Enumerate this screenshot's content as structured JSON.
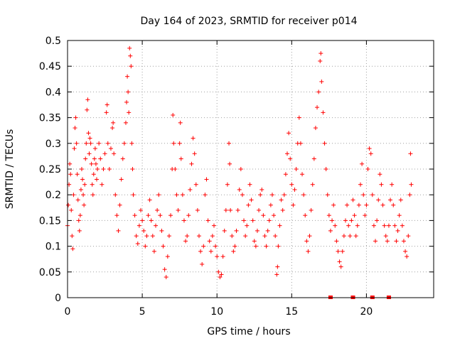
{
  "chart_data": {
    "type": "scatter",
    "title": "Day 164 of 2023, SRMTID for receiver p014",
    "xlabel": "GPS time / hours",
    "ylabel": "SRMTID / TECUs",
    "xlim": [
      0,
      24.5
    ],
    "ylim": [
      0,
      0.5
    ],
    "x_ticks": [
      0,
      5,
      10,
      15,
      20
    ],
    "x_tick_labels": [
      "0",
      "5",
      "10",
      "15",
      "20"
    ],
    "y_ticks": [
      0,
      0.05,
      0.1,
      0.15,
      0.2,
      0.25,
      0.3,
      0.35,
      0.4,
      0.45,
      0.5
    ],
    "y_tick_labels": [
      "0",
      "0.05",
      "0.1",
      "0.15",
      "0.2",
      "0.25",
      "0.3",
      "0.35",
      "0.4",
      "0.45",
      "0.5"
    ],
    "grid": true,
    "color": "#ff0000",
    "marker": "plus",
    "series": [
      {
        "name": "SRMTID",
        "points": [
          [
            0.0,
            0.14
          ],
          [
            0.05,
            0.18
          ],
          [
            0.1,
            0.22
          ],
          [
            0.15,
            0.26
          ],
          [
            0.2,
            0.24
          ],
          [
            0.25,
            0.17
          ],
          [
            0.3,
            0.12
          ],
          [
            0.35,
            0.095
          ],
          [
            0.4,
            0.2
          ],
          [
            0.45,
            0.29
          ],
          [
            0.5,
            0.33
          ],
          [
            0.55,
            0.35
          ],
          [
            0.6,
            0.3
          ],
          [
            0.65,
            0.24
          ],
          [
            0.7,
            0.19
          ],
          [
            0.75,
            0.15
          ],
          [
            0.8,
            0.13
          ],
          [
            0.85,
            0.16
          ],
          [
            0.9,
            0.21
          ],
          [
            0.95,
            0.25
          ],
          [
            1.0,
            0.23
          ],
          [
            1.05,
            0.2
          ],
          [
            1.1,
            0.18
          ],
          [
            1.15,
            0.22
          ],
          [
            1.2,
            0.27
          ],
          [
            1.25,
            0.3
          ],
          [
            1.3,
            0.365
          ],
          [
            1.35,
            0.385
          ],
          [
            1.4,
            0.32
          ],
          [
            1.45,
            0.28
          ],
          [
            1.5,
            0.31
          ],
          [
            1.55,
            0.3
          ],
          [
            1.6,
            0.26
          ],
          [
            1.65,
            0.22
          ],
          [
            1.7,
            0.2
          ],
          [
            1.75,
            0.24
          ],
          [
            1.8,
            0.27
          ],
          [
            1.85,
            0.29
          ],
          [
            1.9,
            0.26
          ],
          [
            1.95,
            0.23
          ],
          [
            2.0,
            0.25
          ],
          [
            2.1,
            0.3
          ],
          [
            2.2,
            0.27
          ],
          [
            2.3,
            0.22
          ],
          [
            2.4,
            0.25
          ],
          [
            2.5,
            0.28
          ],
          [
            2.6,
            0.36
          ],
          [
            2.65,
            0.375
          ],
          [
            2.7,
            0.3
          ],
          [
            2.8,
            0.25
          ],
          [
            2.9,
            0.29
          ],
          [
            3.0,
            0.33
          ],
          [
            3.05,
            0.34
          ],
          [
            3.1,
            0.28
          ],
          [
            3.2,
            0.2
          ],
          [
            3.3,
            0.16
          ],
          [
            3.4,
            0.13
          ],
          [
            3.5,
            0.18
          ],
          [
            3.6,
            0.23
          ],
          [
            3.7,
            0.27
          ],
          [
            3.8,
            0.3
          ],
          [
            3.9,
            0.34
          ],
          [
            3.95,
            0.38
          ],
          [
            4.0,
            0.43
          ],
          [
            4.05,
            0.4
          ],
          [
            4.1,
            0.36
          ],
          [
            4.15,
            0.485
          ],
          [
            4.2,
            0.47
          ],
          [
            4.25,
            0.45
          ],
          [
            4.3,
            0.3
          ],
          [
            4.35,
            0.25
          ],
          [
            4.4,
            0.2
          ],
          [
            4.5,
            0.16
          ],
          [
            4.6,
            0.12
          ],
          [
            4.7,
            0.105
          ],
          [
            4.8,
            0.14
          ],
          [
            4.9,
            0.17
          ],
          [
            5.0,
            0.15
          ],
          [
            5.1,
            0.13
          ],
          [
            5.2,
            0.1
          ],
          [
            5.3,
            0.12
          ],
          [
            5.4,
            0.16
          ],
          [
            5.5,
            0.19
          ],
          [
            5.6,
            0.15
          ],
          [
            5.7,
            0.12
          ],
          [
            5.8,
            0.09
          ],
          [
            5.9,
            0.14
          ],
          [
            6.0,
            0.17
          ],
          [
            6.1,
            0.2
          ],
          [
            6.2,
            0.16
          ],
          [
            6.3,
            0.13
          ],
          [
            6.4,
            0.1
          ],
          [
            6.5,
            0.055
          ],
          [
            6.6,
            0.04
          ],
          [
            6.7,
            0.08
          ],
          [
            6.8,
            0.12
          ],
          [
            6.9,
            0.16
          ],
          [
            7.0,
            0.25
          ],
          [
            7.05,
            0.355
          ],
          [
            7.1,
            0.3
          ],
          [
            7.2,
            0.25
          ],
          [
            7.3,
            0.2
          ],
          [
            7.4,
            0.17
          ],
          [
            7.5,
            0.3
          ],
          [
            7.55,
            0.34
          ],
          [
            7.6,
            0.27
          ],
          [
            7.7,
            0.2
          ],
          [
            7.8,
            0.15
          ],
          [
            7.9,
            0.11
          ],
          [
            8.0,
            0.12
          ],
          [
            8.1,
            0.16
          ],
          [
            8.2,
            0.21
          ],
          [
            8.3,
            0.26
          ],
          [
            8.4,
            0.31
          ],
          [
            8.5,
            0.28
          ],
          [
            8.6,
            0.22
          ],
          [
            8.7,
            0.17
          ],
          [
            8.8,
            0.12
          ],
          [
            8.9,
            0.09
          ],
          [
            9.0,
            0.065
          ],
          [
            9.1,
            0.1
          ],
          [
            9.2,
            0.2
          ],
          [
            9.3,
            0.23
          ],
          [
            9.4,
            0.15
          ],
          [
            9.5,
            0.11
          ],
          [
            9.6,
            0.09
          ],
          [
            9.7,
            0.12
          ],
          [
            9.8,
            0.14
          ],
          [
            9.9,
            0.1
          ],
          [
            10.0,
            0.08
          ],
          [
            10.1,
            0.05
          ],
          [
            10.2,
            0.04
          ],
          [
            10.3,
            0.045
          ],
          [
            10.4,
            0.08
          ],
          [
            10.5,
            0.13
          ],
          [
            10.6,
            0.17
          ],
          [
            10.7,
            0.22
          ],
          [
            10.8,
            0.3
          ],
          [
            10.85,
            0.26
          ],
          [
            10.9,
            0.17
          ],
          [
            11.0,
            0.12
          ],
          [
            11.1,
            0.09
          ],
          [
            11.2,
            0.1
          ],
          [
            11.3,
            0.13
          ],
          [
            11.4,
            0.17
          ],
          [
            11.5,
            0.21
          ],
          [
            11.6,
            0.25
          ],
          [
            11.7,
            0.2
          ],
          [
            11.8,
            0.15
          ],
          [
            11.9,
            0.12
          ],
          [
            12.0,
            0.14
          ],
          [
            12.1,
            0.18
          ],
          [
            12.2,
            0.22
          ],
          [
            12.3,
            0.19
          ],
          [
            12.4,
            0.15
          ],
          [
            12.5,
            0.11
          ],
          [
            12.6,
            0.1
          ],
          [
            12.7,
            0.13
          ],
          [
            12.8,
            0.17
          ],
          [
            12.9,
            0.2
          ],
          [
            13.0,
            0.21
          ],
          [
            13.1,
            0.16
          ],
          [
            13.2,
            0.12
          ],
          [
            13.3,
            0.1
          ],
          [
            13.4,
            0.13
          ],
          [
            13.5,
            0.15
          ],
          [
            13.6,
            0.18
          ],
          [
            13.7,
            0.2
          ],
          [
            13.8,
            0.16
          ],
          [
            13.9,
            0.12
          ],
          [
            14.0,
            0.045
          ],
          [
            14.05,
            0.06
          ],
          [
            14.1,
            0.1
          ],
          [
            14.2,
            0.14
          ],
          [
            14.3,
            0.19
          ],
          [
            14.4,
            0.17
          ],
          [
            14.5,
            0.2
          ],
          [
            14.6,
            0.24
          ],
          [
            14.7,
            0.28
          ],
          [
            14.8,
            0.32
          ],
          [
            14.9,
            0.27
          ],
          [
            15.0,
            0.22
          ],
          [
            15.1,
            0.18
          ],
          [
            15.2,
            0.21
          ],
          [
            15.3,
            0.25
          ],
          [
            15.4,
            0.3
          ],
          [
            15.5,
            0.35
          ],
          [
            15.6,
            0.3
          ],
          [
            15.7,
            0.24
          ],
          [
            15.8,
            0.2
          ],
          [
            15.9,
            0.16
          ],
          [
            16.0,
            0.11
          ],
          [
            16.1,
            0.09
          ],
          [
            16.2,
            0.12
          ],
          [
            16.3,
            0.17
          ],
          [
            16.4,
            0.22
          ],
          [
            16.5,
            0.27
          ],
          [
            16.6,
            0.33
          ],
          [
            16.7,
            0.37
          ],
          [
            16.8,
            0.4
          ],
          [
            16.9,
            0.46
          ],
          [
            16.95,
            0.475
          ],
          [
            17.0,
            0.42
          ],
          [
            17.1,
            0.36
          ],
          [
            17.2,
            0.3
          ],
          [
            17.3,
            0.25
          ],
          [
            17.4,
            0.2
          ],
          [
            17.5,
            0.16
          ],
          [
            17.6,
            0.13
          ],
          [
            17.7,
            0.15
          ],
          [
            17.8,
            0.18
          ],
          [
            17.9,
            0.14
          ],
          [
            18.0,
            0.11
          ],
          [
            18.1,
            0.09
          ],
          [
            18.2,
            0.07
          ],
          [
            18.3,
            0.06
          ],
          [
            18.4,
            0.09
          ],
          [
            18.5,
            0.12
          ],
          [
            18.6,
            0.15
          ],
          [
            18.7,
            0.18
          ],
          [
            18.8,
            0.14
          ],
          [
            18.9,
            0.12
          ],
          [
            19.0,
            0.15
          ],
          [
            19.1,
            0.19
          ],
          [
            19.2,
            0.16
          ],
          [
            19.3,
            0.12
          ],
          [
            19.4,
            0.14
          ],
          [
            19.5,
            0.18
          ],
          [
            19.6,
            0.22
          ],
          [
            19.7,
            0.26
          ],
          [
            19.8,
            0.2
          ],
          [
            19.9,
            0.16
          ],
          [
            20.0,
            0.18
          ],
          [
            20.1,
            0.25
          ],
          [
            20.2,
            0.29
          ],
          [
            20.3,
            0.28
          ],
          [
            20.4,
            0.2
          ],
          [
            20.5,
            0.14
          ],
          [
            20.6,
            0.11
          ],
          [
            20.7,
            0.15
          ],
          [
            20.8,
            0.19
          ],
          [
            20.9,
            0.24
          ],
          [
            21.0,
            0.22
          ],
          [
            21.1,
            0.18
          ],
          [
            21.2,
            0.14
          ],
          [
            21.3,
            0.12
          ],
          [
            21.4,
            0.11
          ],
          [
            21.5,
            0.14
          ],
          [
            21.6,
            0.19
          ],
          [
            21.7,
            0.22
          ],
          [
            21.8,
            0.18
          ],
          [
            21.9,
            0.14
          ],
          [
            22.0,
            0.11
          ],
          [
            22.1,
            0.13
          ],
          [
            22.2,
            0.16
          ],
          [
            22.3,
            0.19
          ],
          [
            22.4,
            0.14
          ],
          [
            22.5,
            0.11
          ],
          [
            22.6,
            0.09
          ],
          [
            22.7,
            0.08
          ],
          [
            22.8,
            0.12
          ],
          [
            22.9,
            0.2
          ],
          [
            22.95,
            0.28
          ],
          [
            23.0,
            0.22
          ]
        ]
      }
    ],
    "bottom_flags": [
      {
        "x": 17.6,
        "y": 0
      },
      {
        "x": 19.1,
        "y": 0
      },
      {
        "x": 20.4,
        "y": 0
      },
      {
        "x": 21.5,
        "y": 0
      }
    ]
  }
}
